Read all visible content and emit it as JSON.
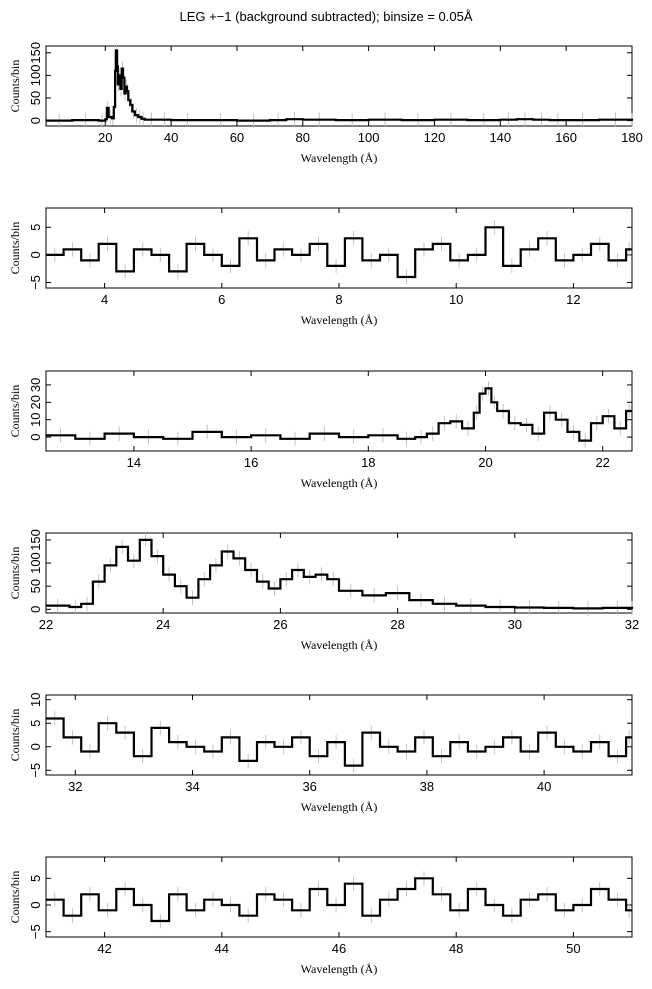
{
  "title": "LEG +−1 (background subtracted); binsize = 0.05Å",
  "chart_data": [
    {
      "type": "line",
      "xlabel": "Wavelength (Å)",
      "ylabel": "Counts/bin",
      "xlim": [
        2,
        180
      ],
      "ylim": [
        -12,
        165
      ],
      "xticks": [
        20,
        40,
        60,
        80,
        100,
        120,
        140,
        160,
        180
      ],
      "yticks": [
        0,
        50,
        100,
        150
      ],
      "ytick_labels": [
        "0",
        "50",
        "100",
        "150"
      ],
      "grid": false,
      "series": [
        {
          "x": [
            2,
            10,
            18,
            20,
            20.5,
            21,
            22,
            22.6,
            23,
            23.2,
            23.6,
            23.8,
            24.2,
            24.6,
            25,
            25.4,
            25.8,
            26.2,
            26.6,
            27,
            27.6,
            28.2,
            29,
            30,
            31,
            32,
            36,
            40,
            50,
            60,
            70,
            75,
            80,
            90,
            100,
            110,
            120,
            130,
            140,
            145,
            150,
            155,
            160,
            170,
            180
          ],
          "y": [
            0,
            1,
            0,
            3,
            28,
            8,
            5,
            30,
            110,
            155,
            120,
            80,
            100,
            70,
            115,
            95,
            60,
            75,
            65,
            45,
            35,
            20,
            12,
            8,
            4,
            2,
            2,
            1,
            1,
            0,
            1,
            3,
            2,
            1,
            2,
            1,
            2,
            1,
            2,
            3,
            2,
            1,
            1,
            2,
            1
          ]
        }
      ]
    },
    {
      "type": "line",
      "xlabel": "Wavelength (Å)",
      "ylabel": "Counts/bin",
      "xlim": [
        3,
        13
      ],
      "ylim": [
        -6,
        8.5
      ],
      "xticks": [
        4,
        6,
        8,
        10,
        12
      ],
      "yticks": [
        -5,
        0,
        5
      ],
      "ytick_labels": [
        "−5",
        "0",
        "5"
      ],
      "grid": false,
      "series": [
        {
          "x": [
            3,
            3.3,
            3.6,
            3.9,
            4.2,
            4.5,
            4.8,
            5.1,
            5.4,
            5.7,
            6.0,
            6.3,
            6.6,
            6.9,
            7.2,
            7.5,
            7.8,
            8.1,
            8.4,
            8.7,
            9.0,
            9.3,
            9.6,
            9.9,
            10.2,
            10.5,
            10.8,
            11.1,
            11.4,
            11.7,
            12.0,
            12.3,
            12.6,
            12.9
          ],
          "y": [
            0,
            1,
            -1,
            2,
            -3,
            1,
            0,
            -3,
            2,
            0,
            -2,
            3,
            -1,
            1,
            0,
            2,
            -2,
            3,
            -1,
            0,
            -4,
            1,
            2,
            -1,
            0,
            5,
            -2,
            1,
            3,
            -1,
            0,
            2,
            -1,
            1
          ]
        }
      ]
    },
    {
      "type": "line",
      "xlabel": "Wavelength (Å)",
      "ylabel": "Counts/bin",
      "xlim": [
        12.5,
        22.5
      ],
      "ylim": [
        -8,
        38
      ],
      "xticks": [
        14,
        16,
        18,
        20,
        22
      ],
      "yticks": [
        0,
        10,
        20,
        30
      ],
      "ytick_labels": [
        "0",
        "10",
        "20",
        "30"
      ],
      "grid": false,
      "series": [
        {
          "x": [
            12.5,
            13.0,
            13.5,
            14.0,
            14.5,
            15.0,
            15.5,
            16.0,
            16.5,
            17.0,
            17.5,
            18.0,
            18.5,
            18.8,
            19.0,
            19.2,
            19.4,
            19.6,
            19.8,
            19.9,
            20.0,
            20.1,
            20.2,
            20.4,
            20.6,
            20.8,
            21.0,
            21.2,
            21.4,
            21.6,
            21.8,
            22.0,
            22.2,
            22.4
          ],
          "y": [
            1,
            -1,
            2,
            0,
            -1,
            3,
            0,
            1,
            -1,
            2,
            0,
            1,
            -1,
            0,
            2,
            8,
            9,
            5,
            14,
            25,
            28,
            20,
            15,
            8,
            7,
            2,
            14,
            10,
            3,
            -2,
            8,
            12,
            5,
            15
          ]
        }
      ]
    },
    {
      "type": "line",
      "xlabel": "Wavelength (Å)",
      "ylabel": "Counts/bin",
      "xlim": [
        22,
        32
      ],
      "ylim": [
        -8,
        165
      ],
      "xticks": [
        22,
        24,
        26,
        28,
        30,
        32
      ],
      "yticks": [
        0,
        50,
        100,
        150
      ],
      "ytick_labels": [
        "0",
        "50",
        "100",
        "150"
      ],
      "grid": false,
      "series": [
        {
          "x": [
            22,
            22.4,
            22.6,
            22.8,
            23.0,
            23.2,
            23.4,
            23.6,
            23.8,
            24.0,
            24.2,
            24.4,
            24.6,
            24.8,
            25.0,
            25.2,
            25.4,
            25.6,
            25.8,
            26.0,
            26.2,
            26.4,
            26.6,
            26.8,
            27.0,
            27.4,
            27.8,
            28.2,
            28.6,
            29.0,
            29.5,
            30.0,
            30.5,
            31.0,
            31.5,
            32.0
          ],
          "y": [
            8,
            5,
            12,
            60,
            95,
            135,
            105,
            150,
            115,
            75,
            50,
            25,
            65,
            95,
            125,
            110,
            85,
            60,
            45,
            65,
            85,
            70,
            75,
            65,
            40,
            30,
            35,
            20,
            12,
            8,
            5,
            4,
            3,
            2,
            3,
            2
          ]
        }
      ]
    },
    {
      "type": "line",
      "xlabel": "Wavelength (Å)",
      "ylabel": "Counts/bin",
      "xlim": [
        31.5,
        41.5
      ],
      "ylim": [
        -6,
        11
      ],
      "xticks": [
        32,
        34,
        36,
        38,
        40
      ],
      "yticks": [
        -5,
        0,
        5,
        10
      ],
      "ytick_labels": [
        "−5",
        "0",
        "5",
        "10"
      ],
      "grid": false,
      "series": [
        {
          "x": [
            31.5,
            31.8,
            32.1,
            32.4,
            32.7,
            33.0,
            33.3,
            33.6,
            33.9,
            34.2,
            34.5,
            34.8,
            35.1,
            35.4,
            35.7,
            36.0,
            36.3,
            36.6,
            36.9,
            37.2,
            37.5,
            37.8,
            38.1,
            38.4,
            38.7,
            39.0,
            39.3,
            39.6,
            39.9,
            40.2,
            40.5,
            40.8,
            41.1,
            41.4
          ],
          "y": [
            6,
            2,
            -1,
            5,
            3,
            -2,
            4,
            1,
            0,
            -1,
            2,
            -3,
            1,
            0,
            2,
            -2,
            1,
            -4,
            3,
            0,
            -1,
            2,
            -2,
            1,
            -1,
            0,
            2,
            -1,
            3,
            0,
            -1,
            1,
            -2,
            2
          ]
        }
      ]
    },
    {
      "type": "line",
      "xlabel": "Wavelength (Å)",
      "ylabel": "Counts/bin",
      "xlim": [
        41,
        51
      ],
      "ylim": [
        -6,
        9
      ],
      "xticks": [
        42,
        44,
        46,
        48,
        50
      ],
      "yticks": [
        -5,
        0,
        5
      ],
      "ytick_labels": [
        "−5",
        "0",
        "5"
      ],
      "grid": false,
      "series": [
        {
          "x": [
            41.0,
            41.3,
            41.6,
            41.9,
            42.2,
            42.5,
            42.8,
            43.1,
            43.4,
            43.7,
            44.0,
            44.3,
            44.6,
            44.9,
            45.2,
            45.5,
            45.8,
            46.1,
            46.4,
            46.7,
            47.0,
            47.3,
            47.6,
            47.9,
            48.2,
            48.5,
            48.8,
            49.1,
            49.4,
            49.7,
            50.0,
            50.3,
            50.6,
            50.9
          ],
          "y": [
            1,
            -2,
            2,
            -1,
            3,
            0,
            -3,
            2,
            -1,
            1,
            0,
            -2,
            2,
            1,
            -1,
            3,
            0,
            4,
            -2,
            1,
            3,
            5,
            2,
            -1,
            3,
            0,
            -2,
            1,
            2,
            -1,
            0,
            3,
            1,
            -1
          ]
        }
      ]
    }
  ]
}
